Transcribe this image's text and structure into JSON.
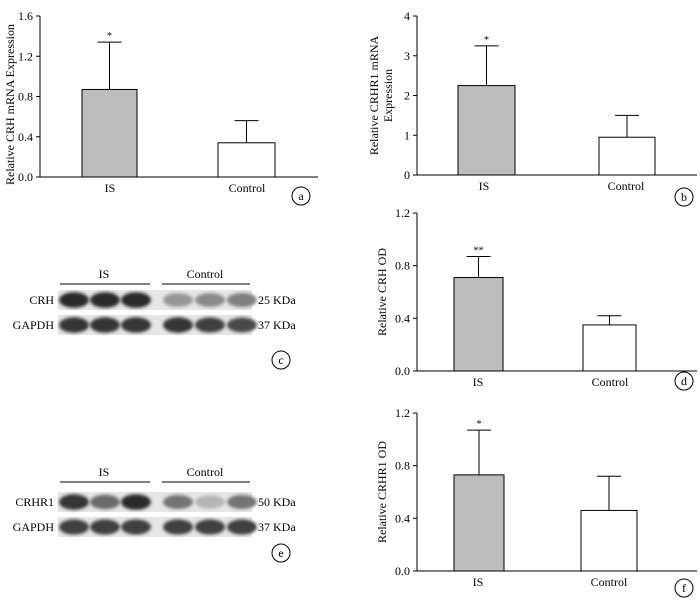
{
  "colors": {
    "gray_bar": "#bdbdbd",
    "white_bar": "#ffffff",
    "axis": "#000000"
  },
  "chart_data": [
    {
      "panel": "a",
      "type": "bar",
      "categories": [
        "IS",
        "Control"
      ],
      "values": [
        0.87,
        0.34
      ],
      "errors": [
        0.47,
        0.22
      ],
      "significance": [
        "*",
        ""
      ],
      "ylabel": "Relative CRH mRNA Expression",
      "ylim": [
        0,
        1.6
      ],
      "yticks": [
        "0.0",
        "0.4",
        "0.8",
        "1.2",
        "1.6"
      ],
      "grid": false
    },
    {
      "panel": "b",
      "type": "bar",
      "categories": [
        "IS",
        "Control"
      ],
      "values": [
        2.25,
        0.95
      ],
      "errors": [
        1.0,
        0.55
      ],
      "significance": [
        "*",
        ""
      ],
      "ylabel": [
        "Relative CRHR1 mRNA",
        "Expression"
      ],
      "ylim": [
        0,
        4
      ],
      "yticks": [
        "0",
        "1",
        "2",
        "3",
        "4"
      ],
      "grid": false
    },
    {
      "panel": "d",
      "type": "bar",
      "categories": [
        "IS",
        "Control"
      ],
      "values": [
        0.71,
        0.35
      ],
      "errors": [
        0.16,
        0.07
      ],
      "significance": [
        "**",
        ""
      ],
      "ylabel": "Relative CRH OD",
      "ylim": [
        0,
        1.2
      ],
      "yticks": [
        "0.0",
        "0.4",
        "0.8",
        "1.2"
      ],
      "grid": false
    },
    {
      "panel": "f",
      "type": "bar",
      "categories": [
        "IS",
        "Control"
      ],
      "values": [
        0.73,
        0.46
      ],
      "errors": [
        0.34,
        0.26
      ],
      "significance": [
        "*",
        ""
      ],
      "ylabel": "Relative CRHR1 OD",
      "ylim": [
        0,
        1.2
      ],
      "yticks": [
        "0.0",
        "0.4",
        "0.8",
        "1.2"
      ],
      "grid": false
    }
  ],
  "blots": [
    {
      "panel": "c",
      "groups": [
        "IS",
        "Control"
      ],
      "rows": [
        {
          "label": "CRH",
          "size": "25 KDa",
          "intensity": [
            0.9,
            0.9,
            0.9,
            0.4,
            0.45,
            0.5
          ]
        },
        {
          "label": "GAPDH",
          "size": "37 KDa",
          "intensity": [
            0.85,
            0.85,
            0.85,
            0.85,
            0.8,
            0.75
          ]
        }
      ]
    },
    {
      "panel": "e",
      "groups": [
        "IS",
        "Control"
      ],
      "rows": [
        {
          "label": "CRHR1",
          "size": "50 KDa",
          "intensity": [
            0.85,
            0.6,
            0.9,
            0.55,
            0.25,
            0.55
          ]
        },
        {
          "label": "GAPDH",
          "size": "37 KDa",
          "intensity": [
            0.8,
            0.8,
            0.8,
            0.8,
            0.8,
            0.8
          ]
        }
      ]
    }
  ]
}
